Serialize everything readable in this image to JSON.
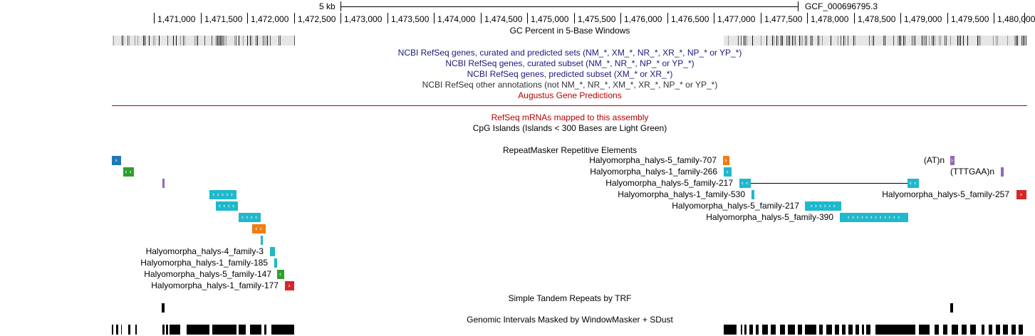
{
  "ruler": {
    "scale_label": "5 kb",
    "assembly_label": "GCF_000696795.3",
    "positions": [
      "1,471,000",
      "1,471,500",
      "1,472,000",
      "1,472,500",
      "1,473,000",
      "1,473,500",
      "1,474,000",
      "1,474,500",
      "1,475,000",
      "1,475,500",
      "1,476,000",
      "1,476,500",
      "1,477,000",
      "1,477,500",
      "1,478,000",
      "1,478,500",
      "1,479,000",
      "1,479,500",
      "1,480,000"
    ]
  },
  "tracks": {
    "gc_percent": "GC Percent in 5-Base Windows",
    "refseq_all": "NCBI RefSeq genes, curated and predicted sets (NM_*, XM_*, NR_*, XR_*, NP_* or YP_*)",
    "refseq_curated": "NCBI RefSeq genes, curated subset (NM_*, NR_*, NP_* or YP_*)",
    "refseq_predicted": "NCBI RefSeq genes, predicted subset (XM_* or XR_*)",
    "refseq_other": "NCBI RefSeq other annotations (not NM_*, NR_*, XM_*, XR_*, NP_* or YP_*)",
    "augustus": "Augustus Gene Predictions",
    "refseq_mrnas": "RefSeq mRNAs mapped to this assembly",
    "cpg": "CpG Islands (Islands < 300 Bases are Light Green)",
    "repeatmasker": "RepeatMasker Repetitive Elements",
    "trf": "Simple Tandem Repeats by TRF",
    "windowmasker": "Genomic Intervals Masked by WindowMasker + SDust"
  },
  "repeat_labels": {
    "l1": "Halyomorpha_halys-5_family-707",
    "l2": "Halyomorpha_halys-1_family-266",
    "l3": "Halyomorpha_halys-5_family-217",
    "l4": "Halyomorpha_halys-1_family-530",
    "l5": "Halyomorpha_halys-5_family-217",
    "l6": "Halyomorpha_halys-5_family-390",
    "l7": "(AT)n",
    "l8": "(TTTGAA)n",
    "l9": "Halyomorpha_halys-5_family-257",
    "l10": "Halyomorpha_halys-4_family-3",
    "l11": "Halyomorpha_halys-1_family-185",
    "l12": "Halyomorpha_halys-5_family-147",
    "l13": "Halyomorpha_halys-1_family-177"
  },
  "colors": {
    "cyan": "#1fb8cc",
    "orange": "#f07d12",
    "green": "#2ca02c",
    "red": "#d62728",
    "purple": "#9467bd",
    "blue": "#1f77b4",
    "augustus_line": "#b50000",
    "refseq_text": "#1a1a7a"
  }
}
